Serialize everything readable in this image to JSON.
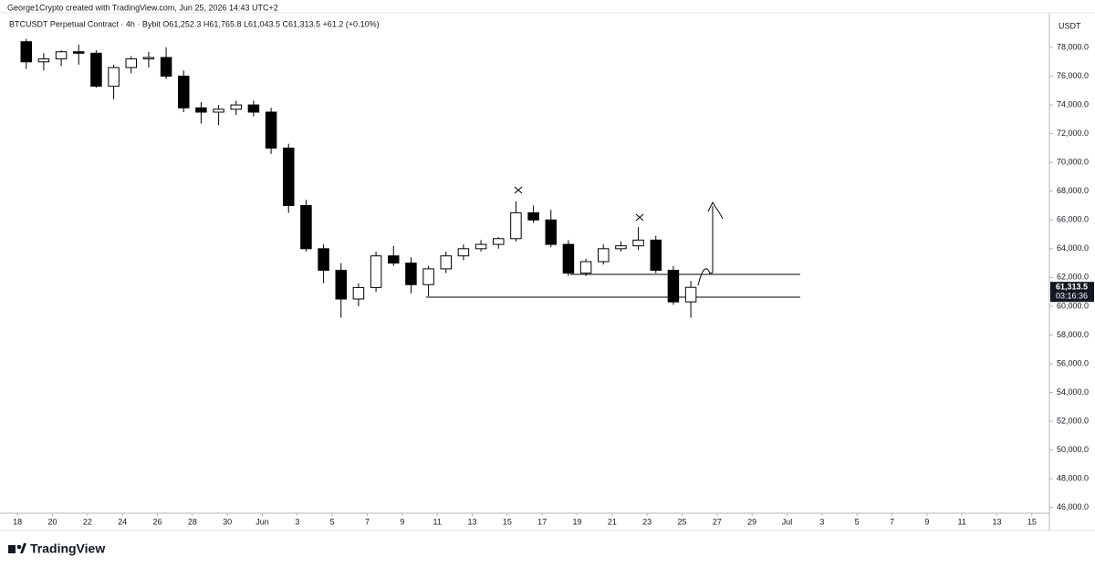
{
  "header": {
    "attribution": "George1Crypto created with TradingView.com, Jun 25, 2026 14:43 UTC+2",
    "logo": "TradingView"
  },
  "chart_data": {
    "type": "candlestick",
    "title": "BTCUSDT Perpetual Contract · 4h · Bybit  O61,252.3 H61,765.8 L61,043.5 C61,313.5 +61.2 (+0.10%)",
    "y_axis_label": "USDT",
    "last_price_label": "61,313.5",
    "countdown": "03:16:36",
    "x": [
      "2026-05-18",
      "2026-05-19",
      "2026-05-20",
      "2026-05-21",
      "2026-05-22",
      "2026-05-23",
      "2026-05-24",
      "2026-05-25",
      "2026-05-26",
      "2026-05-27",
      "2026-05-28",
      "2026-05-29",
      "2026-05-30",
      "2026-05-31",
      "2026-06-01",
      "2026-06-02",
      "2026-06-03",
      "2026-06-04",
      "2026-06-05",
      "2026-06-06",
      "2026-06-07",
      "2026-06-08",
      "2026-06-09",
      "2026-06-10",
      "2026-06-11",
      "2026-06-12",
      "2026-06-13",
      "2026-06-14",
      "2026-06-15",
      "2026-06-16",
      "2026-06-17",
      "2026-06-18",
      "2026-06-19",
      "2026-06-20",
      "2026-06-21",
      "2026-06-22",
      "2026-06-23",
      "2026-06-24",
      "2026-06-25"
    ],
    "open": [
      78400,
      77000,
      77200,
      77700,
      77600,
      75300,
      76600,
      77200,
      77300,
      76000,
      73800,
      73500,
      73700,
      74000,
      73500,
      71000,
      67000,
      64000,
      62500,
      60500,
      61300,
      63500,
      63000,
      61500,
      62600,
      63500,
      64000,
      64300,
      64700,
      66500,
      66000,
      64300,
      62300,
      63100,
      64000,
      64200,
      64600,
      62500,
      60300
    ],
    "high": [
      78600,
      77600,
      77800,
      78200,
      77800,
      76800,
      77400,
      77700,
      78000,
      76400,
      74200,
      74000,
      74300,
      74300,
      73800,
      71300,
      67400,
      64300,
      63000,
      61600,
      63800,
      64200,
      63400,
      62800,
      63800,
      64300,
      64600,
      64800,
      67300,
      67000,
      66700,
      64600,
      63300,
      64300,
      64500,
      65500,
      64900,
      62800,
      61766
    ],
    "low": [
      76500,
      76400,
      76700,
      76800,
      75200,
      74400,
      76200,
      76600,
      75800,
      73500,
      72700,
      72600,
      73300,
      73200,
      70600,
      66500,
      63800,
      61600,
      59200,
      60000,
      61000,
      62800,
      60900,
      60700,
      62300,
      63200,
      63800,
      64000,
      64500,
      65800,
      64100,
      62100,
      62100,
      62900,
      63800,
      63900,
      62300,
      60100,
      59200
    ],
    "close": [
      77000,
      77200,
      77700,
      77600,
      75300,
      76600,
      77200,
      77300,
      76000,
      73800,
      73500,
      73700,
      74000,
      73500,
      71000,
      67000,
      64000,
      62500,
      60500,
      61300,
      63500,
      63000,
      61500,
      62600,
      63500,
      64000,
      64300,
      64700,
      66500,
      66000,
      64300,
      62300,
      63100,
      64000,
      64200,
      64600,
      62500,
      60300,
      61313.5
    ],
    "up_color": "#ffffff",
    "down_color": "#000000",
    "outline_color": "#000000",
    "ylim": [
      45600,
      81300
    ],
    "yticks": [
      {
        "value": 46000,
        "label": "46,000.0"
      },
      {
        "value": 48000,
        "label": "48,000.0"
      },
      {
        "value": 50000,
        "label": "50,000.0"
      },
      {
        "value": 52000,
        "label": "52,000.0"
      },
      {
        "value": 54000,
        "label": "54,000.0"
      },
      {
        "value": 56000,
        "label": "56,000.0"
      },
      {
        "value": 58000,
        "label": "58,000.0"
      },
      {
        "value": 60000,
        "label": "60,000.0"
      },
      {
        "value": 62000,
        "label": "62,000.0"
      },
      {
        "value": 64000,
        "label": "64,000.0"
      },
      {
        "value": 66000,
        "label": "66,000.0"
      },
      {
        "value": 68000,
        "label": "68,000.0"
      },
      {
        "value": 70000,
        "label": "70,000.0"
      },
      {
        "value": 72000,
        "label": "72,000.0"
      },
      {
        "value": 74000,
        "label": "74,000.0"
      },
      {
        "value": 76000,
        "label": "76,000.0"
      },
      {
        "value": 78000,
        "label": "78,000.0"
      }
    ],
    "xlim": [
      "2026-05-17",
      "2026-07-16"
    ],
    "xticks": [
      {
        "value": "2026-05-18",
        "label": "18"
      },
      {
        "value": "2026-05-20",
        "label": "20"
      },
      {
        "value": "2026-05-22",
        "label": "22"
      },
      {
        "value": "2026-05-24",
        "label": "24"
      },
      {
        "value": "2026-05-26",
        "label": "26"
      },
      {
        "value": "2026-05-28",
        "label": "28"
      },
      {
        "value": "2026-05-30",
        "label": "30"
      },
      {
        "value": "2026-06-01",
        "label": "Jun"
      },
      {
        "value": "2026-06-03",
        "label": "3"
      },
      {
        "value": "2026-06-05",
        "label": "5"
      },
      {
        "value": "2026-06-07",
        "label": "7"
      },
      {
        "value": "2026-06-09",
        "label": "9"
      },
      {
        "value": "2026-06-11",
        "label": "11"
      },
      {
        "value": "2026-06-13",
        "label": "13"
      },
      {
        "value": "2026-06-15",
        "label": "15"
      },
      {
        "value": "2026-06-17",
        "label": "17"
      },
      {
        "value": "2026-06-19",
        "label": "19"
      },
      {
        "value": "2026-06-21",
        "label": "21"
      },
      {
        "value": "2026-06-23",
        "label": "23"
      },
      {
        "value": "2026-06-25",
        "label": "25"
      },
      {
        "value": "2026-06-27",
        "label": "27"
      },
      {
        "value": "2026-06-29",
        "label": "29"
      },
      {
        "value": "2026-07-01",
        "label": "Jul"
      },
      {
        "value": "2026-07-03",
        "label": "3"
      },
      {
        "value": "2026-07-05",
        "label": "5"
      },
      {
        "value": "2026-07-07",
        "label": "7"
      },
      {
        "value": "2026-07-09",
        "label": "9"
      },
      {
        "value": "2026-07-11",
        "label": "11"
      },
      {
        "value": "2026-07-13",
        "label": "13"
      },
      {
        "value": "2026-07-15",
        "label": "15"
      }
    ],
    "grid": false
  }
}
